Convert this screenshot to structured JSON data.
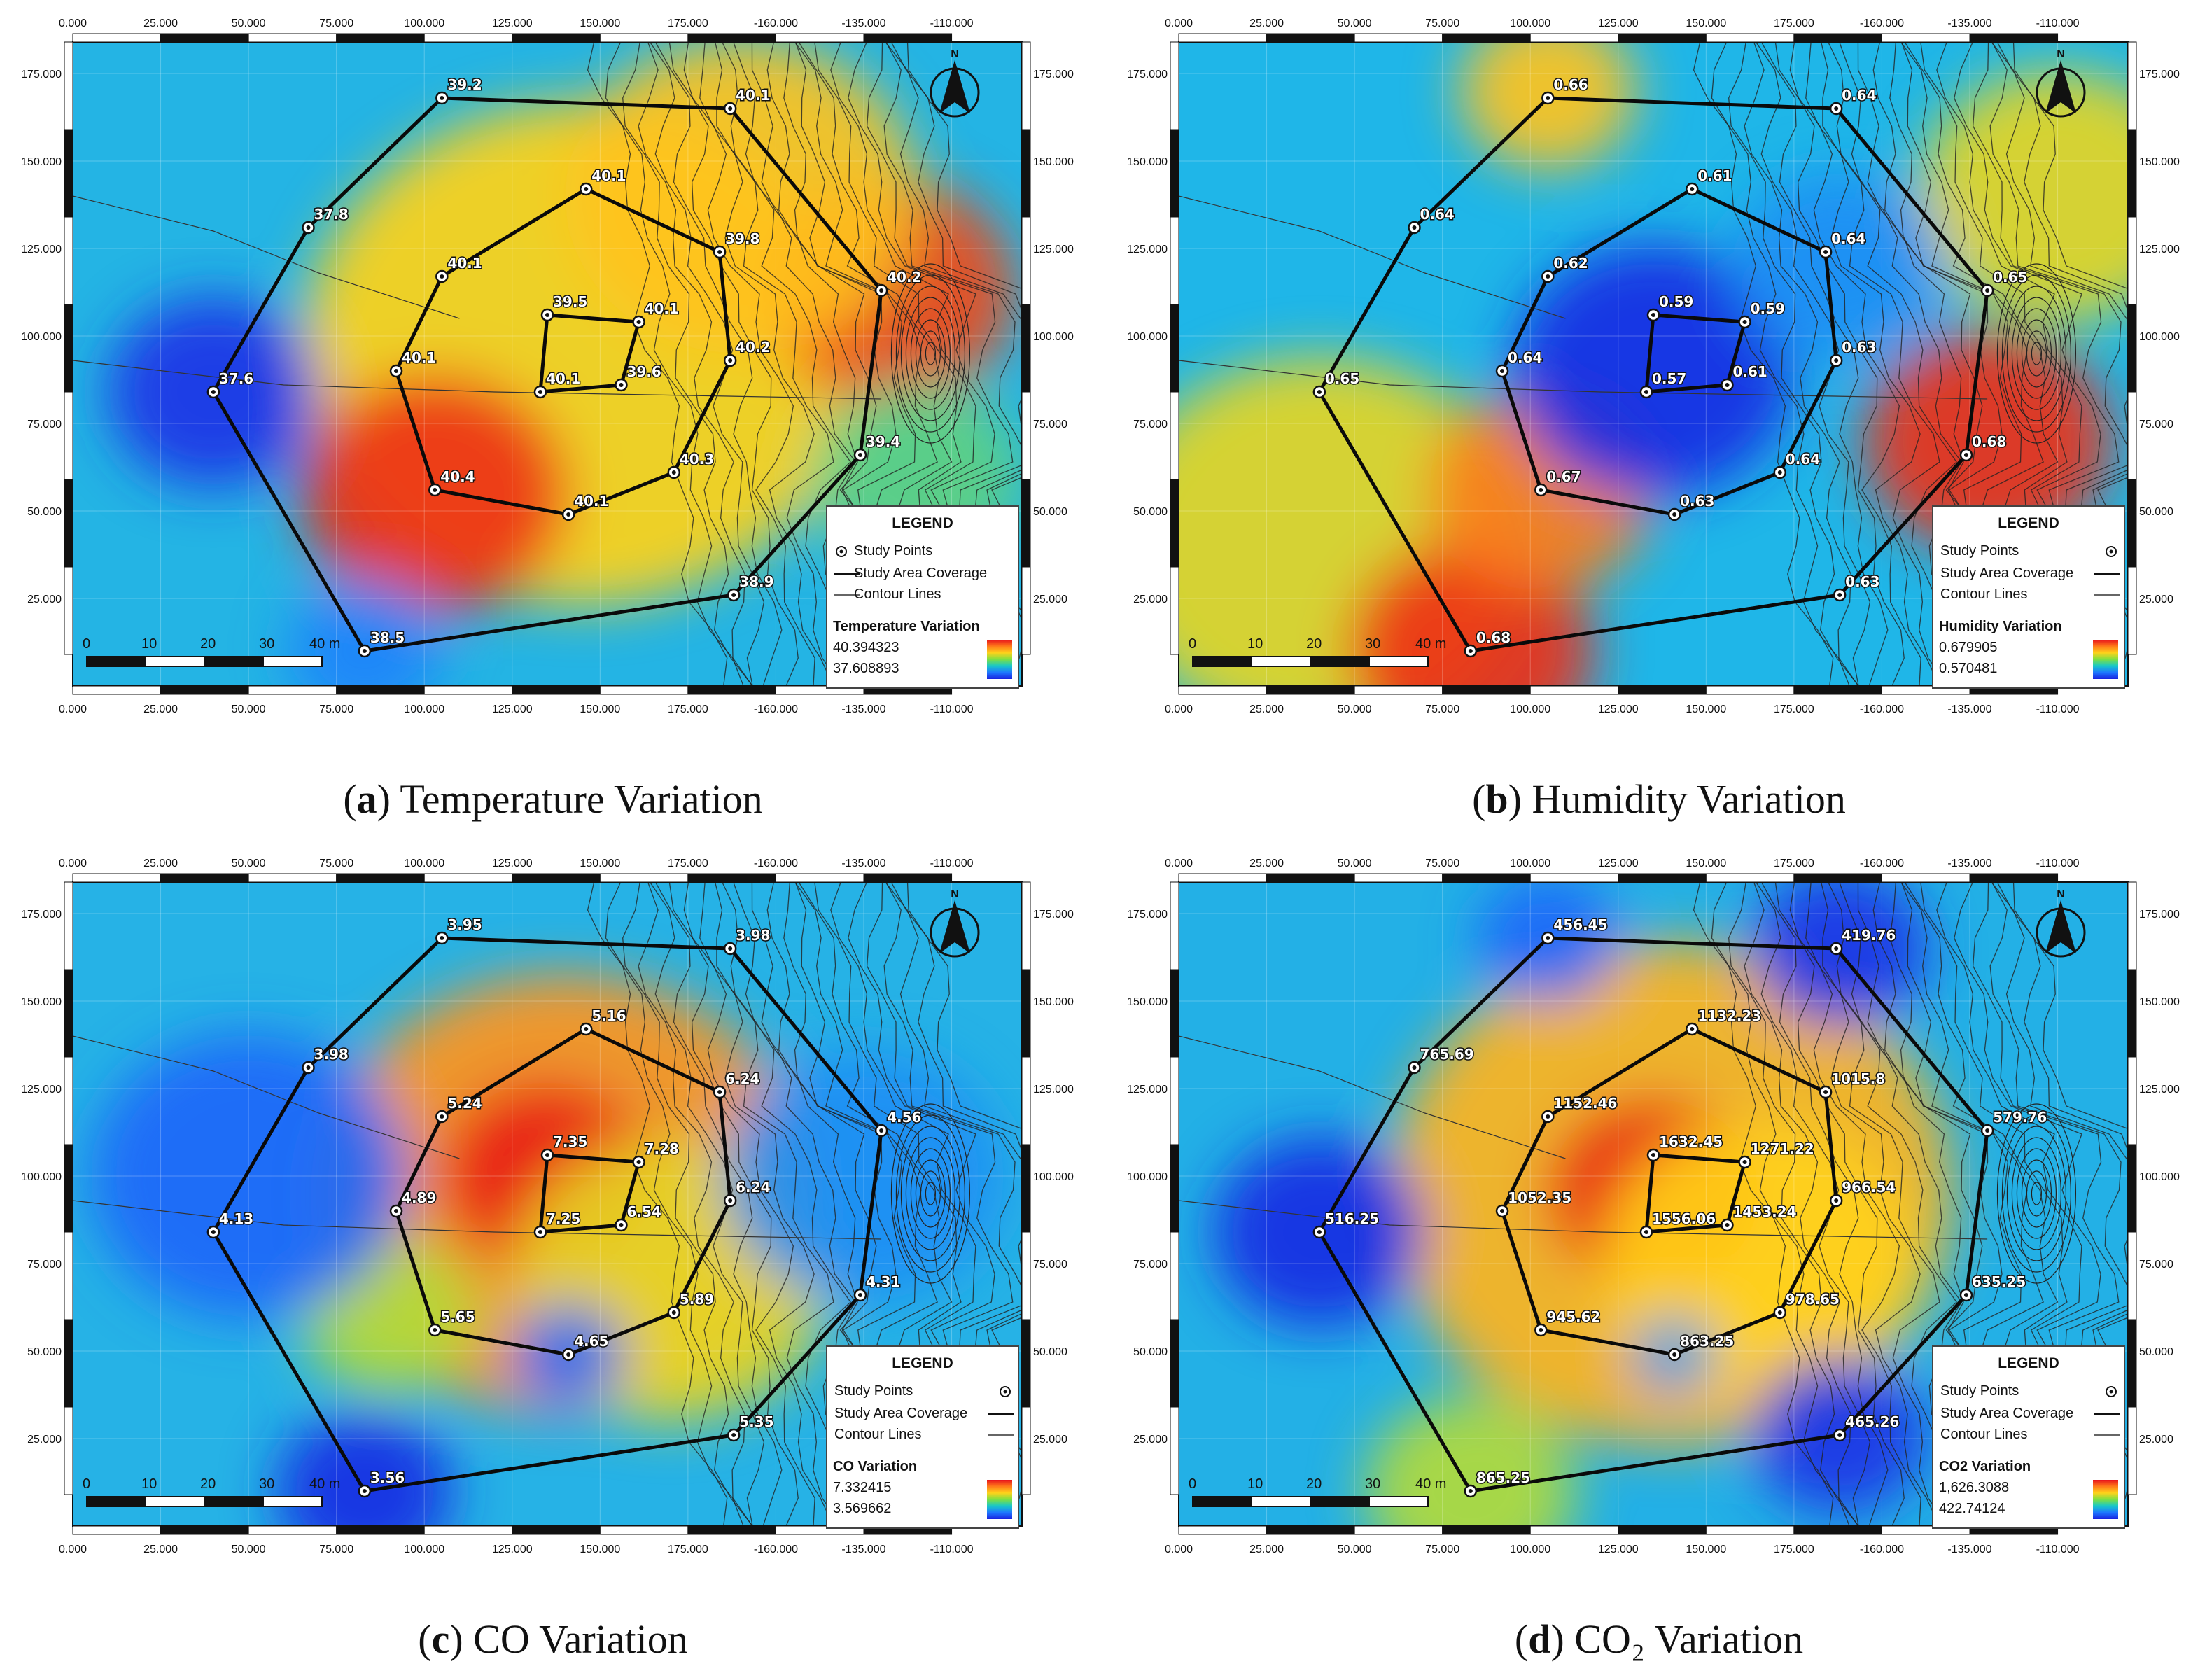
{
  "axes": {
    "x_ticks": [
      "0.000",
      "25.000",
      "50.000",
      "75.000",
      "100.000",
      "125.000",
      "150.000",
      "175.000",
      "-160.000",
      "-135.000",
      "-110.000"
    ],
    "y_ticks": [
      "175.000",
      "150.000",
      "125.000",
      "100.000",
      "75.000",
      "50.000",
      "25.000"
    ],
    "scale_labels": [
      "0",
      "10",
      "20",
      "30",
      "40 m"
    ]
  },
  "legend": {
    "title": "LEGEND",
    "study_points": "Study Points",
    "coverage": "Study Area Coverage",
    "contours": "Contour Lines"
  },
  "panels": [
    {
      "id": "a",
      "letter": "a",
      "caption": "Temperature Variation",
      "var_title": "Temperature Variation",
      "max": "40.394323",
      "min": "37.608893",
      "points": [
        {
          "value": "39.2",
          "x": 105,
          "y": 168
        },
        {
          "value": "40.1",
          "x": 187,
          "y": 165
        },
        {
          "value": "37.8",
          "x": 67,
          "y": 131
        },
        {
          "value": "40.1",
          "x": 146,
          "y": 142
        },
        {
          "value": "39.8",
          "x": 184,
          "y": 124
        },
        {
          "value": "40.1",
          "x": 105,
          "y": 117
        },
        {
          "value": "40.2",
          "x": 230,
          "y": 113
        },
        {
          "value": "39.5",
          "x": 135,
          "y": 106
        },
        {
          "value": "40.1",
          "x": 161,
          "y": 104
        },
        {
          "value": "40.1",
          "x": 92,
          "y": 90
        },
        {
          "value": "40.2",
          "x": 187,
          "y": 93
        },
        {
          "value": "40.1",
          "x": 133,
          "y": 84
        },
        {
          "value": "39.6",
          "x": 156,
          "y": 86
        },
        {
          "value": "37.6",
          "x": 40,
          "y": 84
        },
        {
          "value": "39.4",
          "x": 224,
          "y": 66
        },
        {
          "value": "40.3",
          "x": 171,
          "y": 61
        },
        {
          "value": "40.4",
          "x": 103,
          "y": 56
        },
        {
          "value": "40.1",
          "x": 141,
          "y": 49
        },
        {
          "value": "38.9",
          "x": 188,
          "y": 26
        },
        {
          "value": "38.5",
          "x": 83,
          "y": 10
        }
      ]
    },
    {
      "id": "b",
      "letter": "b",
      "caption": "Humidity Variation",
      "var_title": "Humidity Variation",
      "max": "0.679905",
      "min": "0.570481",
      "points": [
        {
          "value": "0.66",
          "x": 105,
          "y": 168
        },
        {
          "value": "0.64",
          "x": 187,
          "y": 165
        },
        {
          "value": "0.64",
          "x": 67,
          "y": 131
        },
        {
          "value": "0.61",
          "x": 146,
          "y": 142
        },
        {
          "value": "0.64",
          "x": 184,
          "y": 124
        },
        {
          "value": "0.62",
          "x": 105,
          "y": 117
        },
        {
          "value": "0.65",
          "x": 230,
          "y": 113
        },
        {
          "value": "0.59",
          "x": 135,
          "y": 106
        },
        {
          "value": "0.59",
          "x": 161,
          "y": 104
        },
        {
          "value": "0.64",
          "x": 92,
          "y": 90
        },
        {
          "value": "0.63",
          "x": 187,
          "y": 93
        },
        {
          "value": "0.57",
          "x": 133,
          "y": 84
        },
        {
          "value": "0.61",
          "x": 156,
          "y": 86
        },
        {
          "value": "0.65",
          "x": 40,
          "y": 84
        },
        {
          "value": "0.68",
          "x": 224,
          "y": 66
        },
        {
          "value": "0.64",
          "x": 171,
          "y": 61
        },
        {
          "value": "0.67",
          "x": 103,
          "y": 56
        },
        {
          "value": "0.63",
          "x": 141,
          "y": 49
        },
        {
          "value": "0.63",
          "x": 188,
          "y": 26
        },
        {
          "value": "0.68",
          "x": 83,
          "y": 10
        }
      ]
    },
    {
      "id": "c",
      "letter": "c",
      "caption": "CO Variation",
      "var_title": "CO Variation",
      "max": "7.332415",
      "min": "3.569662",
      "points": [
        {
          "value": "3.95",
          "x": 105,
          "y": 168
        },
        {
          "value": "3.98",
          "x": 187,
          "y": 165
        },
        {
          "value": "3.98",
          "x": 67,
          "y": 131
        },
        {
          "value": "5.16",
          "x": 146,
          "y": 142
        },
        {
          "value": "6.24",
          "x": 184,
          "y": 124
        },
        {
          "value": "5.24",
          "x": 105,
          "y": 117
        },
        {
          "value": "4.56",
          "x": 230,
          "y": 113
        },
        {
          "value": "7.35",
          "x": 135,
          "y": 106
        },
        {
          "value": "7.28",
          "x": 161,
          "y": 104
        },
        {
          "value": "4.89",
          "x": 92,
          "y": 90
        },
        {
          "value": "6.24",
          "x": 187,
          "y": 93
        },
        {
          "value": "7.25",
          "x": 133,
          "y": 84
        },
        {
          "value": "6.54",
          "x": 156,
          "y": 86
        },
        {
          "value": "4.13",
          "x": 40,
          "y": 84
        },
        {
          "value": "4.31",
          "x": 224,
          "y": 66
        },
        {
          "value": "5.89",
          "x": 171,
          "y": 61
        },
        {
          "value": "5.65",
          "x": 103,
          "y": 56
        },
        {
          "value": "4.65",
          "x": 141,
          "y": 49
        },
        {
          "value": "5.35",
          "x": 188,
          "y": 26
        },
        {
          "value": "3.56",
          "x": 83,
          "y": 10
        }
      ]
    },
    {
      "id": "d",
      "letter": "d",
      "caption": "CO₂ Variation",
      "var_title": "CO2 Variation",
      "max": "1,626.3088",
      "min": "422.74124",
      "points": [
        {
          "value": "456.45",
          "x": 105,
          "y": 168
        },
        {
          "value": "419.76",
          "x": 187,
          "y": 165
        },
        {
          "value": "765.69",
          "x": 67,
          "y": 131
        },
        {
          "value": "1132.23",
          "x": 146,
          "y": 142
        },
        {
          "value": "1015.8",
          "x": 184,
          "y": 124
        },
        {
          "value": "1152.46",
          "x": 105,
          "y": 117
        },
        {
          "value": "579.76",
          "x": 230,
          "y": 113
        },
        {
          "value": "1632.45",
          "x": 135,
          "y": 106
        },
        {
          "value": "1271.22",
          "x": 161,
          "y": 104
        },
        {
          "value": "1052.35",
          "x": 92,
          "y": 90
        },
        {
          "value": "966.54",
          "x": 187,
          "y": 93
        },
        {
          "value": "1556.06",
          "x": 133,
          "y": 84
        },
        {
          "value": "1453.24",
          "x": 156,
          "y": 86
        },
        {
          "value": "516.25",
          "x": 40,
          "y": 84
        },
        {
          "value": "635.25",
          "x": 224,
          "y": 66
        },
        {
          "value": "978.65",
          "x": 171,
          "y": 61
        },
        {
          "value": "945.62",
          "x": 103,
          "y": 56
        },
        {
          "value": "863.25",
          "x": 141,
          "y": 49
        },
        {
          "value": "465.26",
          "x": 188,
          "y": 26
        },
        {
          "value": "865.25",
          "x": 83,
          "y": 10
        }
      ]
    }
  ],
  "north_label": "N"
}
